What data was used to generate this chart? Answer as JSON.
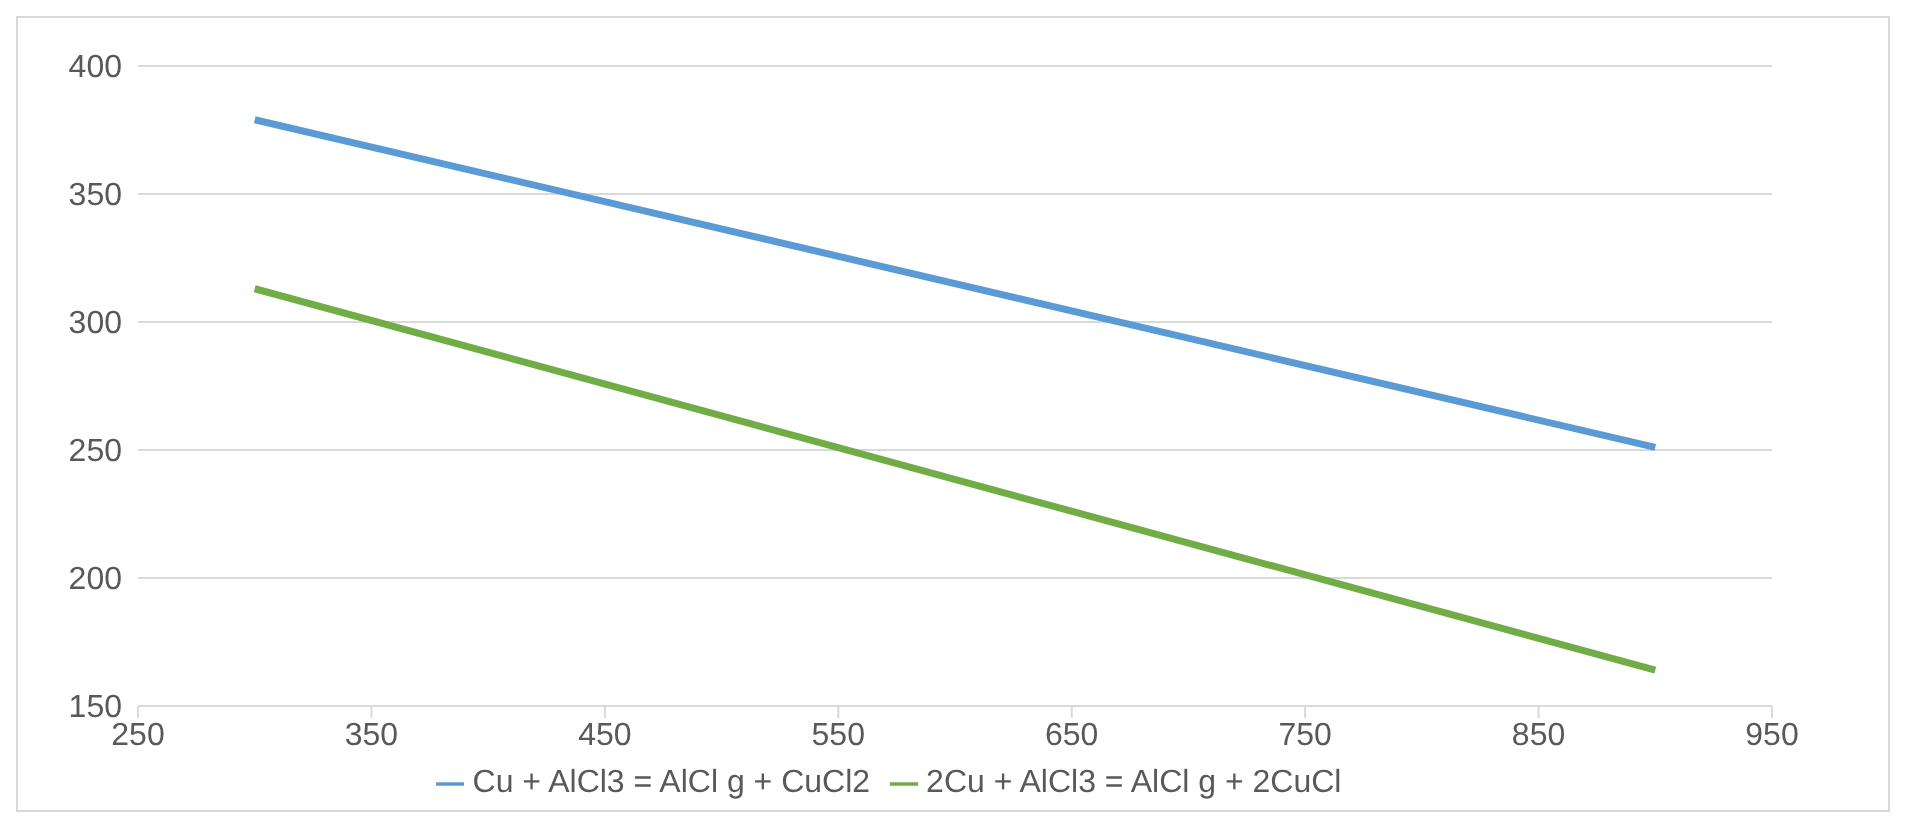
{
  "chart_data": {
    "type": "line",
    "x": [
      300,
      900
    ],
    "series": [
      {
        "name": "Cu + AlCl3 = AlCl g + CuCl2",
        "color": "#5b9bd5",
        "values": [
          379,
          251
        ]
      },
      {
        "name": "2Cu + AlCl3 = AlCl g + 2CuCl",
        "color": "#70ad47",
        "values": [
          313,
          164
        ]
      }
    ],
    "xlim": [
      250,
      950
    ],
    "xticks": [
      250,
      350,
      450,
      550,
      650,
      750,
      850,
      950
    ],
    "ylim": [
      150,
      400
    ],
    "yticks": [
      150,
      200,
      250,
      300,
      350,
      400
    ],
    "grid": "y",
    "legend": "bottom",
    "marker": "none",
    "line_style": "solid"
  }
}
